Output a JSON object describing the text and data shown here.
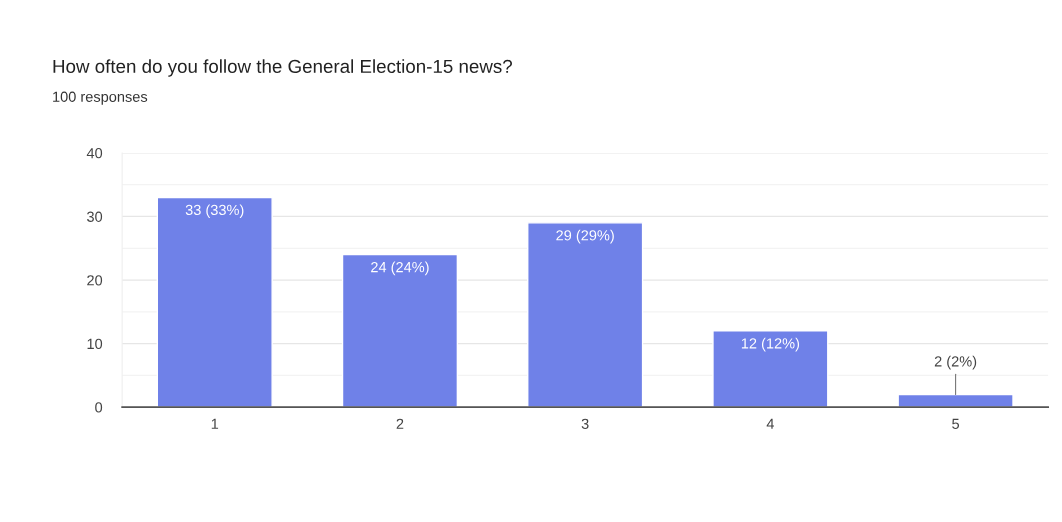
{
  "chart_data": {
    "type": "bar",
    "title": "How often do you follow the General Election-15 news?",
    "subtitle": "100 responses",
    "categories": [
      "1",
      "2",
      "3",
      "4",
      "5"
    ],
    "values": [
      33,
      24,
      29,
      12,
      2
    ],
    "color": "#6f81e8",
    "value_labels": [
      "33 (33%)",
      "24 (24%)",
      "29 (29%)",
      "12 (12%)",
      "2 (2%)"
    ],
    "ylim": [
      0,
      40
    ],
    "yticks": [
      0,
      {
        "value": 5,
        "label": null
      },
      10,
      {
        "value": 15,
        "label": null
      },
      20,
      {
        "value": 25,
        "label": null
      },
      30,
      {
        "value": 35,
        "label": null
      },
      40
    ],
    "grid": "y",
    "legend": false
  }
}
